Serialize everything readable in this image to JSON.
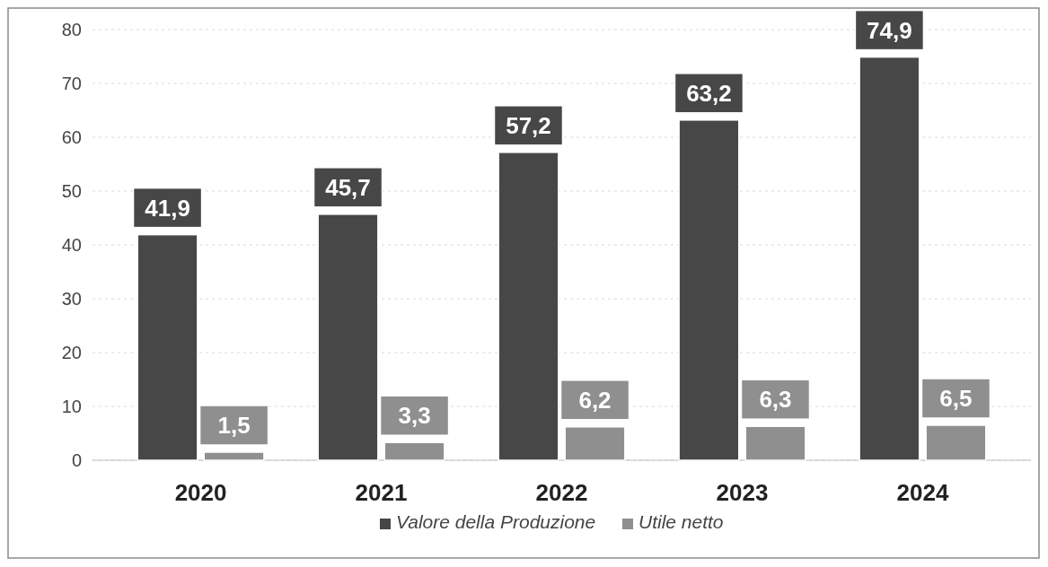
{
  "chart_data": {
    "type": "bar",
    "categories": [
      "2020",
      "2021",
      "2022",
      "2023",
      "2024"
    ],
    "series": [
      {
        "name": "Valore della Produzione",
        "color": "#474747",
        "values": [
          41.9,
          45.7,
          57.2,
          63.2,
          74.9
        ],
        "value_labels": [
          "41,9",
          "45,7",
          "57,2",
          "63,2",
          "74,9"
        ]
      },
      {
        "name": "Utile netto",
        "color": "#8f8f8f",
        "values": [
          1.5,
          3.3,
          6.2,
          6.3,
          6.5
        ],
        "value_labels": [
          "1,5",
          "3,3",
          "6,2",
          "6,3",
          "6,5"
        ]
      }
    ],
    "ylim": [
      0,
      80
    ],
    "yticks": [
      0,
      10,
      20,
      30,
      40,
      50,
      60,
      70,
      80
    ],
    "grid": "y",
    "legend": "bottom"
  }
}
